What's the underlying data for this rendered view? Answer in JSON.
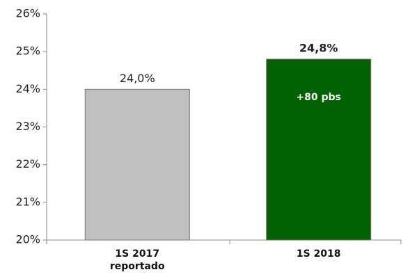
{
  "chart_data": {
    "type": "bar",
    "categories": [
      "1S 2017 reportado",
      "1S 2018"
    ],
    "values": [
      24.0,
      24.8
    ],
    "value_labels": [
      "24,0%",
      "24,8%"
    ],
    "colors": [
      "#c0c0c0",
      "#006100"
    ],
    "annotation": "+80 pbs",
    "ylim": [
      20,
      26
    ],
    "yticks": [
      {
        "value": 20,
        "label": "20%"
      },
      {
        "value": 21,
        "label": "21%"
      },
      {
        "value": 22,
        "label": "22%"
      },
      {
        "value": 23,
        "label": "23%"
      },
      {
        "value": 24,
        "label": "24%"
      },
      {
        "value": 25,
        "label": "25%"
      },
      {
        "value": 26,
        "label": "26%"
      }
    ],
    "grid": false
  }
}
